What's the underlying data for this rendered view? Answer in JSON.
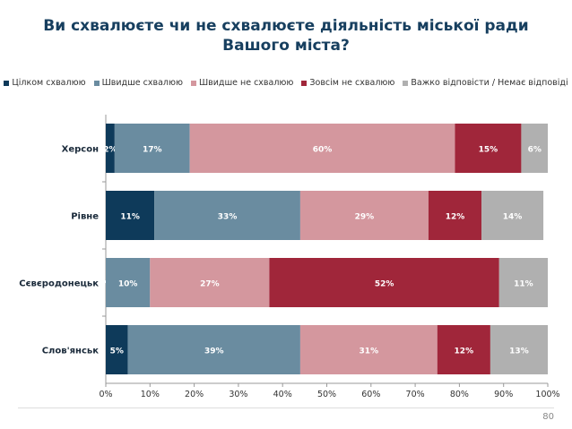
{
  "chart_data": {
    "type": "bar",
    "orientation": "horizontal-stacked-100",
    "title": "Ви схвалюєте чи не схвалюєте діяльність міської ради Вашого міста?",
    "categories": [
      "Херсон",
      "Рівне",
      "Сєвєродонецьк",
      "Слов'янськ"
    ],
    "series": [
      {
        "name": "Цілком схвалюю",
        "color": "#0e3a5a",
        "values": [
          2,
          11,
          0,
          5
        ]
      },
      {
        "name": "Швидше схвалюю",
        "color": "#6a8ca0",
        "values": [
          17,
          33,
          10,
          39
        ]
      },
      {
        "name": "Швидше не схвалюю",
        "color": "#d4979e",
        "values": [
          60,
          29,
          27,
          31
        ]
      },
      {
        "name": "Зовсім не схвалюю",
        "color": "#a0263a",
        "values": [
          15,
          12,
          52,
          12
        ]
      },
      {
        "name": "Важко відповісти / Немає відповіді",
        "color": "#b0b0b0",
        "values": [
          6,
          14,
          11,
          13
        ]
      }
    ],
    "xlim": [
      0,
      100
    ],
    "xticks": [
      "0%",
      "10%",
      "20%",
      "30%",
      "40%",
      "50%",
      "60%",
      "70%",
      "80%",
      "90%",
      "100%"
    ],
    "legend": "top",
    "grid": false
  },
  "page_number": "80"
}
